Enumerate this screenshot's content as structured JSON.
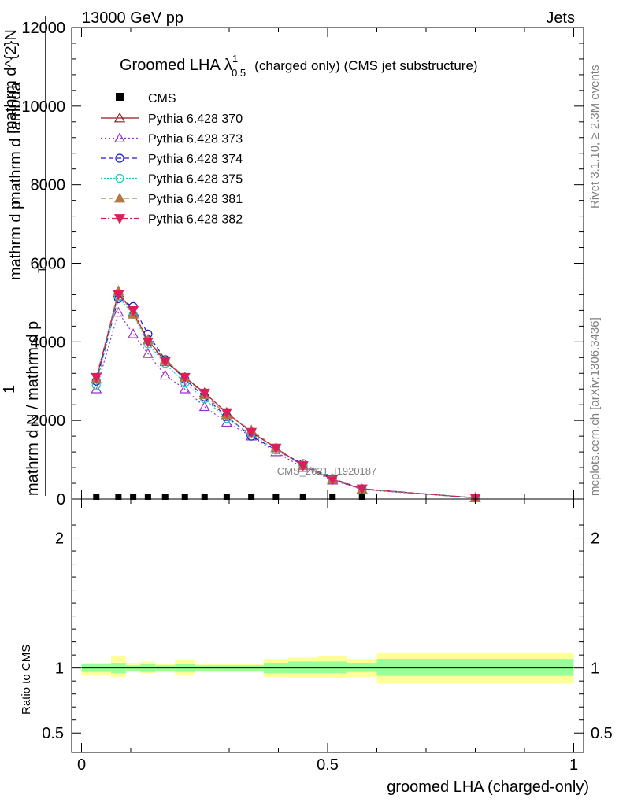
{
  "header": {
    "left": "13000 GeV pp",
    "right": "Jets"
  },
  "side_texts": {
    "rivet": "Rivet 3.1.10, ≥ 2.3M events",
    "mcplots": "mcplots.cern.ch [arXiv:1306.3436]"
  },
  "watermark": "CMS_2021_I1920187",
  "chart_data": [
    {
      "type": "line",
      "title_main": "Groomed LHA",
      "title_symbol": "λ",
      "title_sup": "1",
      "title_sub": "0.5",
      "title_rest": "(charged only) (CMS jet substructure)",
      "ylabel_parts": [
        "1",
        "mathrm d N / mathrm d p",
        "T",
        "mathrm d N",
        "mathrm d p",
        "T",
        "mathrm d lambda",
        "mathrm d",
        "mathrm d",
        "T"
      ],
      "ylabel_left": "1",
      "ylabel_main": "mathrm d N / mathrm d p",
      "ylabel_sub": "T",
      "ylabel_num": "mathrm d^{2}N",
      "ylabel_den": "mathrm d p",
      "ylabel_den_sub": "T",
      "ylabel_den_rest": "mathrm d lambda",
      "xlim": [
        -0.02,
        1.02
      ],
      "ylim": [
        0,
        12000
      ],
      "yticks": [
        0,
        2000,
        4000,
        6000,
        8000,
        10000,
        12000
      ],
      "ytick_labels": [
        "0",
        "2000",
        "4000",
        "6000",
        "8000",
        "10000",
        "12000"
      ],
      "legend_placement": "top-left",
      "cms_label": "CMS",
      "cms": {
        "x": [
          0.03,
          0.075,
          0.105,
          0.135,
          0.17,
          0.21,
          0.25,
          0.295,
          0.345,
          0.395,
          0.45,
          0.51,
          0.57
        ],
        "y": [
          20,
          20,
          20,
          20,
          20,
          20,
          20,
          20,
          20,
          20,
          20,
          20,
          20
        ]
      },
      "series": [
        {
          "name": "Pythia 6.428 370",
          "color": "#8b1a1a",
          "dash": "",
          "marker": "triangle-open",
          "x": [
            0.03,
            0.075,
            0.105,
            0.135,
            0.17,
            0.21,
            0.25,
            0.295,
            0.345,
            0.395,
            0.45,
            0.51,
            0.57,
            0.8
          ],
          "y": [
            3050,
            5250,
            4750,
            4050,
            3500,
            3100,
            2700,
            2200,
            1700,
            1300,
            850,
            500,
            250,
            30
          ]
        },
        {
          "name": "Pythia 6.428 373",
          "color": "#9932cc",
          "dash": "2,3",
          "marker": "triangle-open",
          "x": [
            0.03,
            0.075,
            0.105,
            0.135,
            0.17,
            0.21,
            0.25,
            0.295,
            0.345,
            0.395,
            0.45,
            0.51,
            0.57,
            0.8
          ],
          "y": [
            2800,
            4750,
            4200,
            3700,
            3150,
            2800,
            2350,
            1950,
            1600,
            1200,
            800,
            480,
            240,
            30
          ]
        },
        {
          "name": "Pythia 6.428 374",
          "color": "#1a1acd",
          "dash": "6,4",
          "marker": "circle-open",
          "x": [
            0.03,
            0.075,
            0.105,
            0.135,
            0.17,
            0.21,
            0.25,
            0.295,
            0.345,
            0.395,
            0.45,
            0.51,
            0.57,
            0.8
          ],
          "y": [
            3000,
            5100,
            4900,
            4200,
            3550,
            3050,
            2600,
            2100,
            1600,
            1250,
            900,
            520,
            260,
            30
          ]
        },
        {
          "name": "Pythia 6.428 375",
          "color": "#20c9b5",
          "dash": "2,2",
          "marker": "circle-open",
          "x": [
            0.03,
            0.075,
            0.105,
            0.135,
            0.17,
            0.21,
            0.25,
            0.295,
            0.345,
            0.395,
            0.45,
            0.51,
            0.57,
            0.8
          ],
          "y": [
            2900,
            5150,
            4700,
            3950,
            3450,
            2950,
            2550,
            2050,
            1650,
            1250,
            850,
            500,
            250,
            30
          ]
        },
        {
          "name": "Pythia 6.428 381",
          "color": "#b07a45",
          "dash": "6,4",
          "marker": "triangle-filled",
          "x": [
            0.03,
            0.075,
            0.105,
            0.135,
            0.17,
            0.21,
            0.25,
            0.295,
            0.345,
            0.395,
            0.45,
            0.51,
            0.57,
            0.8
          ],
          "y": [
            3050,
            5300,
            4700,
            4050,
            3550,
            3100,
            2650,
            2150,
            1750,
            1300,
            850,
            500,
            250,
            30
          ]
        },
        {
          "name": "Pythia 6.428 382",
          "color": "#dc1f5a",
          "dash": "6,3,2,3",
          "marker": "triangle-down-filled",
          "x": [
            0.03,
            0.075,
            0.105,
            0.135,
            0.17,
            0.21,
            0.25,
            0.295,
            0.345,
            0.395,
            0.45,
            0.51,
            0.57,
            0.8
          ],
          "y": [
            3100,
            5200,
            4800,
            4000,
            3500,
            3100,
            2700,
            2200,
            1700,
            1300,
            850,
            500,
            260,
            30
          ]
        }
      ]
    },
    {
      "type": "area",
      "ylabel": "Ratio to CMS",
      "xlabel": "groomed LHA (charged-only)",
      "xlim": [
        -0.02,
        1.02
      ],
      "ylim": [
        0.35,
        2.3
      ],
      "yticks": [
        0.5,
        1,
        2
      ],
      "ytick_labels": [
        "0.5",
        "1",
        "2"
      ],
      "xticks": [
        0,
        0.5,
        1
      ],
      "xtick_labels": [
        "0",
        "0.5",
        "1"
      ],
      "ratio_line": 1,
      "bands": [
        {
          "x0": 0.0,
          "x1": 0.06,
          "inner": [
            0.97,
            1.03
          ],
          "outer": [
            0.95,
            1.04
          ]
        },
        {
          "x0": 0.06,
          "x1": 0.09,
          "inner": [
            0.96,
            1.04
          ],
          "outer": [
            0.93,
            1.09
          ]
        },
        {
          "x0": 0.09,
          "x1": 0.12,
          "inner": [
            0.98,
            1.02
          ],
          "outer": [
            0.97,
            1.04
          ]
        },
        {
          "x0": 0.12,
          "x1": 0.15,
          "inner": [
            0.97,
            1.03
          ],
          "outer": [
            0.96,
            1.05
          ]
        },
        {
          "x0": 0.15,
          "x1": 0.19,
          "inner": [
            0.98,
            1.02
          ],
          "outer": [
            0.97,
            1.03
          ]
        },
        {
          "x0": 0.19,
          "x1": 0.23,
          "inner": [
            0.97,
            1.03
          ],
          "outer": [
            0.95,
            1.06
          ]
        },
        {
          "x0": 0.23,
          "x1": 0.27,
          "inner": [
            0.98,
            1.02
          ],
          "outer": [
            0.97,
            1.03
          ]
        },
        {
          "x0": 0.27,
          "x1": 0.32,
          "inner": [
            0.98,
            1.02
          ],
          "outer": [
            0.97,
            1.03
          ]
        },
        {
          "x0": 0.32,
          "x1": 0.37,
          "inner": [
            0.98,
            1.02
          ],
          "outer": [
            0.97,
            1.03
          ]
        },
        {
          "x0": 0.37,
          "x1": 0.42,
          "inner": [
            0.96,
            1.04
          ],
          "outer": [
            0.93,
            1.07
          ]
        },
        {
          "x0": 0.42,
          "x1": 0.48,
          "inner": [
            0.96,
            1.05
          ],
          "outer": [
            0.92,
            1.08
          ]
        },
        {
          "x0": 0.48,
          "x1": 0.54,
          "inner": [
            0.96,
            1.05
          ],
          "outer": [
            0.92,
            1.09
          ]
        },
        {
          "x0": 0.54,
          "x1": 0.6,
          "inner": [
            0.97,
            1.04
          ],
          "outer": [
            0.93,
            1.07
          ]
        },
        {
          "x0": 0.6,
          "x1": 1.0,
          "inner": [
            0.94,
            1.07
          ],
          "outer": [
            0.88,
            1.12
          ]
        }
      ]
    }
  ],
  "colors": {
    "inner_band": "#99ff99",
    "outer_band": "#ffff99"
  }
}
